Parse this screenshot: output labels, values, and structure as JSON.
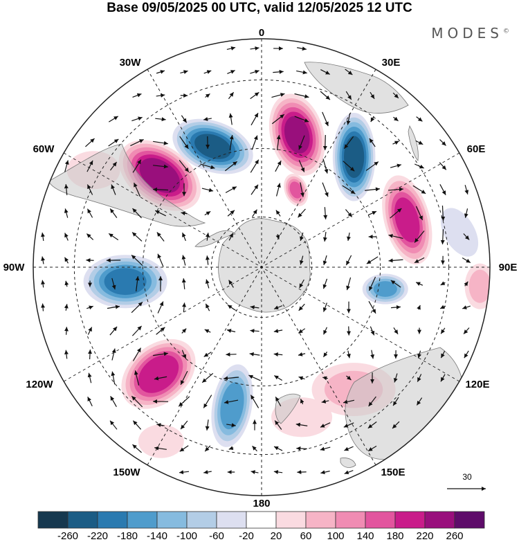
{
  "title": "Base 09/05/2025 00 UTC, valid 12/05/2025 12 UTC",
  "brand": "MODES",
  "brand_mark": "©",
  "map": {
    "projection": "south-polar-stereographic",
    "longitude_labels": [
      {
        "text": "0",
        "lon": 0
      },
      {
        "text": "30E",
        "lon": 30
      },
      {
        "text": "60E",
        "lon": 60
      },
      {
        "text": "90E",
        "lon": 90
      },
      {
        "text": "120E",
        "lon": 120
      },
      {
        "text": "150E",
        "lon": 150
      },
      {
        "text": "180",
        "lon": 180
      },
      {
        "text": "150W",
        "lon": -150
      },
      {
        "text": "120W",
        "lon": -120
      },
      {
        "text": "90W",
        "lon": -90
      },
      {
        "text": "60W",
        "lon": -60
      },
      {
        "text": "30W",
        "lon": -30
      }
    ],
    "anomaly_centres": [
      {
        "lon": -48,
        "colat": 0.6,
        "value": 250,
        "ra": 60,
        "rb": 38,
        "rot": 35
      },
      {
        "lon": -22,
        "colat": 0.57,
        "value": -230,
        "ra": 55,
        "rb": 33,
        "rot": 20
      },
      {
        "lon": 15,
        "colat": 0.6,
        "value": 230,
        "ra": 55,
        "rb": 35,
        "rot": 75
      },
      {
        "lon": 24,
        "colat": 0.37,
        "value": 150,
        "ra": 22,
        "rb": 15,
        "rot": 70
      },
      {
        "lon": 40,
        "colat": 0.63,
        "value": -240,
        "ra": 58,
        "rb": 28,
        "rot": 90
      },
      {
        "lon": 72,
        "colat": 0.67,
        "value": 200,
        "ra": 60,
        "rb": 30,
        "rot": 75
      },
      {
        "lon": 100,
        "colat": 0.55,
        "value": -150,
        "ra": 30,
        "rb": 20,
        "rot": 0
      },
      {
        "lon": -96,
        "colat": 0.6,
        "value": -200,
        "ra": 55,
        "rb": 35,
        "rot": 0
      },
      {
        "lon": -136,
        "colat": 0.65,
        "value": 220,
        "ra": 55,
        "rb": 38,
        "rot": -40
      },
      {
        "lon": -168,
        "colat": 0.62,
        "value": -170,
        "ra": 55,
        "rb": 26,
        "rot": -80
      },
      {
        "lon": 143,
        "colat": 0.67,
        "value": 70,
        "ra": 55,
        "rb": 35,
        "rot": 0
      },
      {
        "lon": 165,
        "colat": 0.68,
        "value": 60,
        "ra": 40,
        "rb": 26,
        "rot": 0
      },
      {
        "lon": -60,
        "colat": 0.85,
        "value": 60,
        "ra": 35,
        "rb": 25,
        "rot": 0
      },
      {
        "lon": 80,
        "colat": 0.88,
        "value": -60,
        "ra": 35,
        "rb": 20,
        "rot": 60
      },
      {
        "lon": -150,
        "colat": 0.88,
        "value": 60,
        "ra": 30,
        "rb": 22,
        "rot": 0
      },
      {
        "lon": 95,
        "colat": 0.96,
        "value": 80,
        "ra": 20,
        "rb": 30,
        "rot": 0
      }
    ]
  },
  "colorbar": {
    "colors": [
      "#16384f",
      "#1b5c85",
      "#2a7ab0",
      "#4f9ccc",
      "#86bbdf",
      "#b3cde6",
      "#dddff0",
      "#ffffff",
      "#fadbe1",
      "#f6b4c6",
      "#f08cb3",
      "#e2559e",
      "#c91c8a",
      "#990f7c",
      "#5e0c6a"
    ],
    "boundaries": [
      -260,
      -220,
      -180,
      -140,
      -100,
      -60,
      -20,
      20,
      60,
      100,
      140,
      180,
      220,
      260
    ],
    "tick_labels": [
      "-260",
      "-220",
      "-180",
      "-140",
      "-100",
      "-60",
      "-20",
      "20",
      "60",
      "100",
      "140",
      "180",
      "220",
      "260"
    ]
  },
  "vector_key": {
    "label": "30"
  }
}
